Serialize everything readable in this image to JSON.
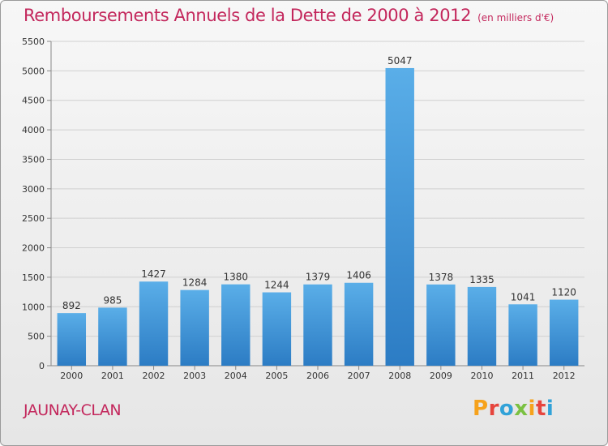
{
  "header": {
    "title": "Remboursements Annuels de la Dette de 2000 à 2012",
    "unit": "(en milliers d'€)"
  },
  "footer": {
    "commune": "JAUNAY-CLAN",
    "brand": "Proxiti",
    "brand_colors": [
      "#f6a21c",
      "#e6453d",
      "#31a2d8",
      "#7bc142",
      "#f6a21c",
      "#e6453d",
      "#31a2d8"
    ]
  },
  "colors": {
    "accent": "#c3275c",
    "bar_top": "#5aaee8",
    "bar_bottom": "#2c7cc4"
  },
  "chart_data": {
    "type": "bar",
    "title": "Remboursements Annuels de la Dette de 2000 à 2012",
    "subtitle": "(en milliers d'€)",
    "xlabel": "",
    "ylabel": "",
    "categories": [
      "2000",
      "2001",
      "2002",
      "2003",
      "2004",
      "2005",
      "2006",
      "2007",
      "2008",
      "2009",
      "2010",
      "2011",
      "2012"
    ],
    "values": [
      892,
      985,
      1427,
      1284,
      1380,
      1244,
      1379,
      1406,
      5047,
      1378,
      1335,
      1041,
      1120
    ],
    "ylim": [
      0,
      5500
    ],
    "yticks": [
      0,
      500,
      1000,
      1500,
      2000,
      2500,
      3000,
      3500,
      4000,
      4500,
      5000,
      5500
    ],
    "grid": true,
    "legend": "none"
  }
}
